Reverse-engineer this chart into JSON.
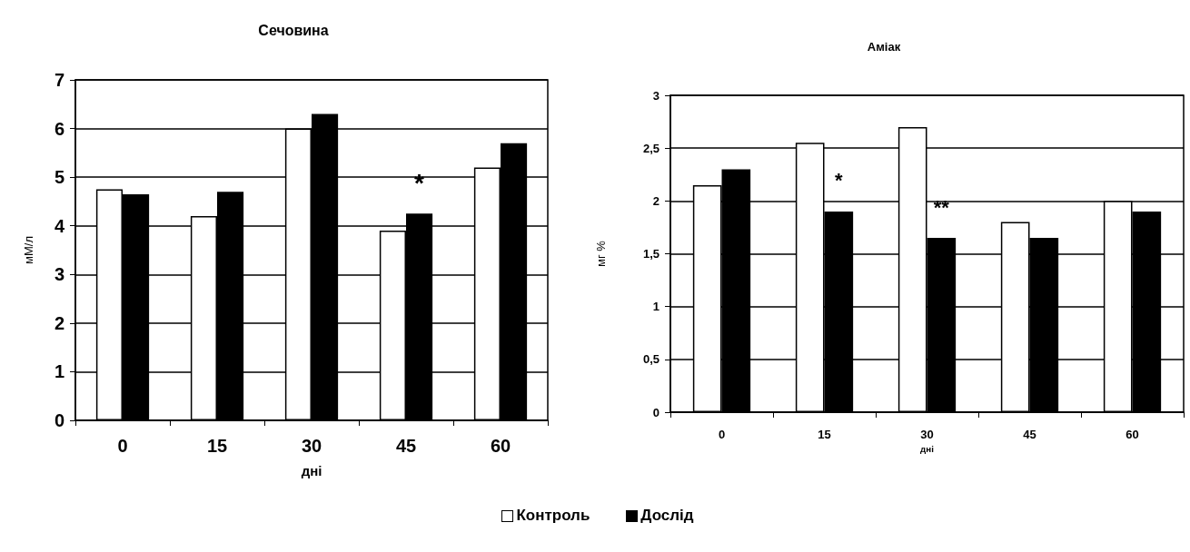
{
  "chart_data": [
    {
      "type": "bar",
      "title": "Сечовина",
      "xlabel": "дні",
      "ylabel": "мМ/л",
      "categories": [
        "0",
        "15",
        "30",
        "45",
        "60"
      ],
      "series": [
        {
          "name": "Контроль",
          "color": "#ffffff",
          "values": [
            4.75,
            4.2,
            6.0,
            3.9,
            5.2
          ]
        },
        {
          "name": "Дослід",
          "color": "#000000",
          "values": [
            4.65,
            4.7,
            6.3,
            4.25,
            5.7
          ]
        }
      ],
      "ylim": [
        0,
        7
      ],
      "yticks": [
        0,
        1,
        2,
        3,
        4,
        5,
        6,
        7
      ],
      "grid": "y",
      "legend": "bottom",
      "annotations": [
        {
          "text": "*",
          "x": "45",
          "y": 4.25
        }
      ]
    },
    {
      "type": "bar",
      "title": "Аміак",
      "xlabel": "дні",
      "ylabel": "мг %",
      "categories": [
        "0",
        "15",
        "30",
        "45",
        "60"
      ],
      "series": [
        {
          "color": "#ffffff",
          "values": [
            2.15,
            2.55,
            2.7,
            1.8,
            2.0
          ]
        },
        {
          "color": "#000000",
          "values": [
            2.3,
            1.9,
            1.65,
            1.65,
            1.9
          ]
        }
      ],
      "ylim": [
        0,
        3
      ],
      "yticks": [
        0,
        {
          "value": 0.5,
          "label": "0,5"
        },
        1,
        {
          "value": 1.5,
          "label": "1,5"
        },
        2,
        {
          "value": 2.5,
          "label": "2,5"
        },
        3
      ],
      "grid": "y",
      "annotations": [
        {
          "text": "*",
          "x": "15",
          "y": 1.9
        },
        {
          "text": "**",
          "x": "30",
          "y": 1.65
        }
      ]
    }
  ]
}
